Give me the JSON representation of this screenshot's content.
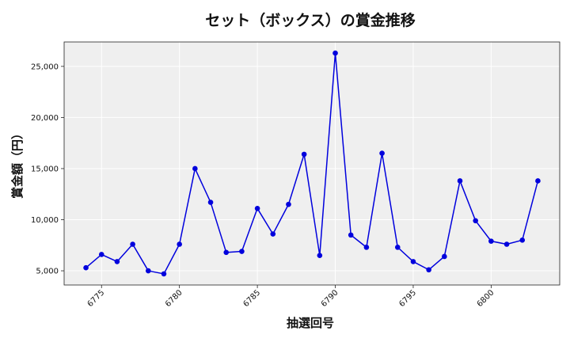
{
  "chart_data": {
    "type": "line",
    "title": "セット（ボックス）の賞金推移",
    "xlabel": "抽選回号",
    "ylabel": "賞金額（円）",
    "x": [
      6774,
      6775,
      6776,
      6777,
      6778,
      6779,
      6780,
      6781,
      6782,
      6783,
      6784,
      6785,
      6786,
      6787,
      6788,
      6789,
      6790,
      6791,
      6792,
      6793,
      6794,
      6795,
      6796,
      6797,
      6798,
      6799,
      6800,
      6801,
      6802,
      6803
    ],
    "series": [
      {
        "values": [
          5300,
          6600,
          5900,
          7600,
          5000,
          4700,
          7600,
          15000,
          11700,
          6800,
          6900,
          11100,
          8600,
          11500,
          16400,
          6500,
          26300,
          8500,
          7300,
          16500,
          7300,
          5900,
          5100,
          6400,
          13800,
          9900,
          7900,
          7600,
          8000,
          13800
        ],
        "color": "#0000dd"
      }
    ],
    "xticks": [
      6775,
      6780,
      6785,
      6790,
      6795,
      6800
    ],
    "xtick_labels": [
      "6775",
      "6780",
      "6785",
      "6790",
      "6795",
      "6800"
    ],
    "yticks": [
      5000,
      10000,
      15000,
      20000,
      25000
    ],
    "ytick_labels": [
      "5,000",
      "10,000",
      "15,000",
      "20,000",
      "25,000"
    ],
    "xlim": [
      6772.6,
      6804.4
    ],
    "ylim": [
      3610,
      27390
    ],
    "grid": true,
    "background": "#efefef"
  }
}
